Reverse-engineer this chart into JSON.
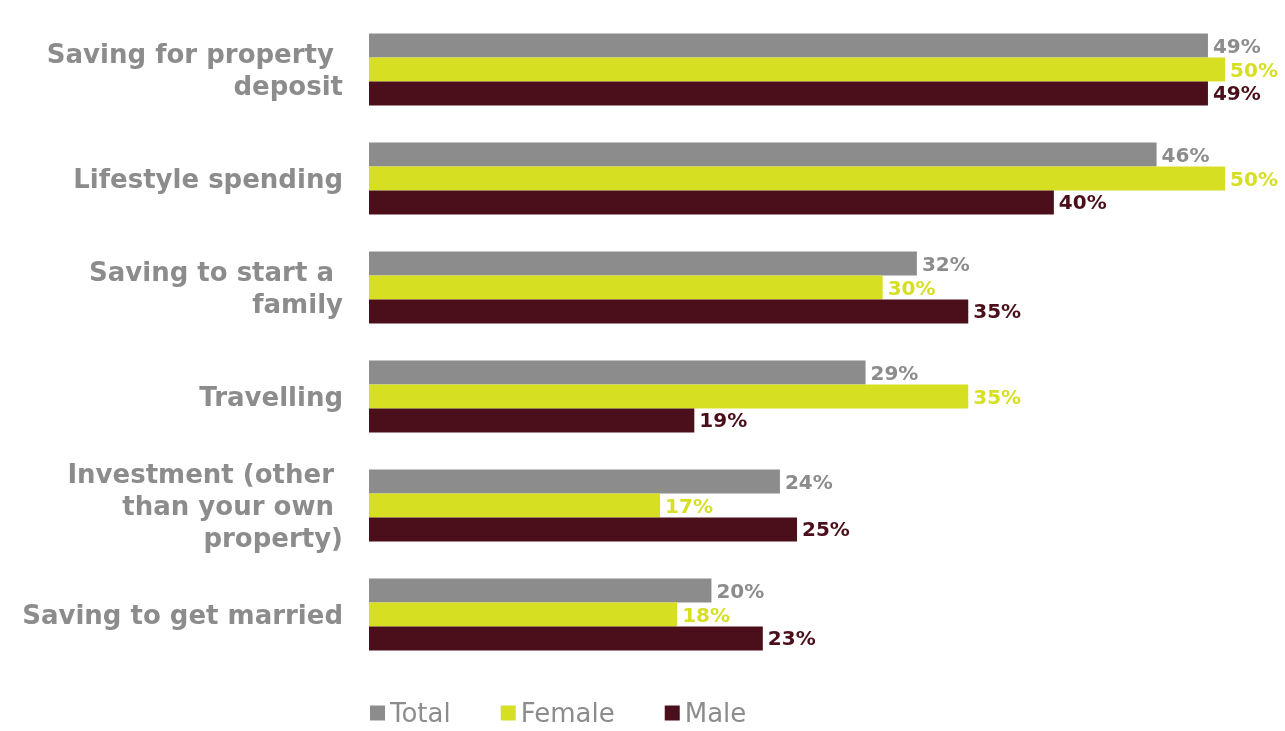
{
  "chart_data": {
    "type": "bar",
    "orientation": "horizontal",
    "categories": [
      "Saving for property deposit",
      "Lifestyle spending",
      "Saving to start a family",
      "Travelling",
      "Investment (other than your own property)",
      "Saving to get married"
    ],
    "series": [
      {
        "name": "Total",
        "color": "#8c8c8c",
        "values": [
          49,
          46,
          32,
          29,
          24,
          20
        ],
        "value_labels": [
          "49%",
          "46%",
          "32%",
          "29%",
          "24%",
          "20%"
        ]
      },
      {
        "name": "Female",
        "color": "#d7df23",
        "values": [
          50,
          50,
          30,
          35,
          17,
          18
        ],
        "value_labels": [
          "50%",
          "50%",
          "30%",
          "35%",
          "17%",
          "18%"
        ]
      },
      {
        "name": "Male",
        "color": "#4a0f1a",
        "values": [
          49,
          40,
          35,
          19,
          25,
          23
        ],
        "value_labels": [
          "49%",
          "40%",
          "35%",
          "19%",
          "25%",
          "23%"
        ]
      }
    ],
    "legend": "bottom",
    "grid": false
  }
}
